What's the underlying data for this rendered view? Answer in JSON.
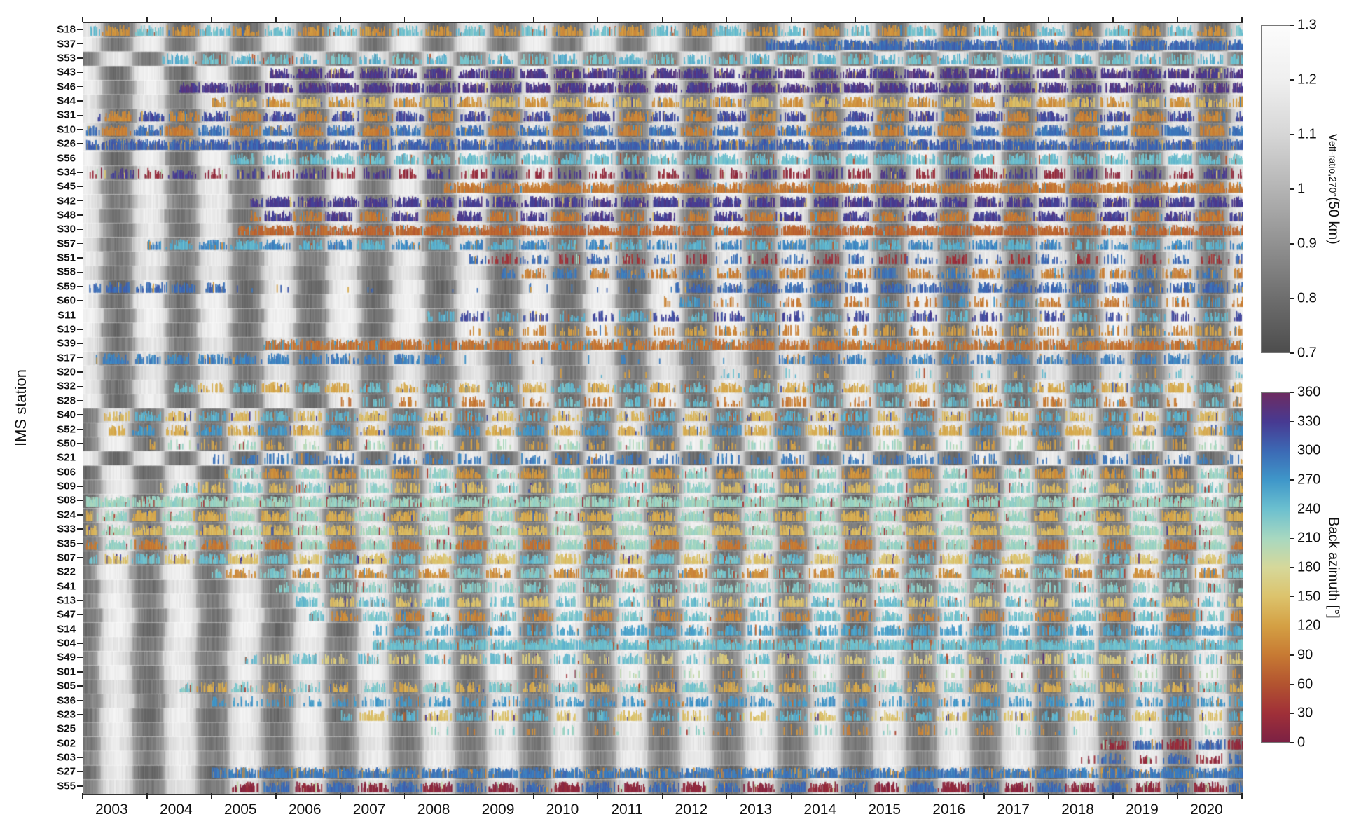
{
  "chart_data": {
    "type": "heatmap",
    "title": "",
    "ylabel": "IMS station",
    "x_range": [
      2003,
      2021
    ],
    "x_ticks": [
      "2003",
      "2004",
      "2005",
      "2006",
      "2007",
      "2008",
      "2009",
      "2010",
      "2011",
      "2012",
      "2013",
      "2014",
      "2015",
      "2016",
      "2017",
      "2018",
      "2019",
      "2020"
    ],
    "colorbars": [
      {
        "name": "veff-ratio",
        "label_parts": [
          "v",
          "eff-ratio,270°",
          " (50 km)"
        ],
        "ticks": [
          "1.3",
          "1.2",
          "1.1",
          "1",
          "0.9",
          "0.8",
          "0.7"
        ],
        "range": [
          0.7,
          1.3
        ],
        "type": "grayscale"
      },
      {
        "name": "back-azimuth",
        "label": "Back azimuth [°]",
        "ticks": [
          "360",
          "330",
          "300",
          "270",
          "240",
          "210",
          "180",
          "150",
          "120",
          "90",
          "60",
          "30",
          "0"
        ],
        "range": [
          0,
          360
        ],
        "type": "cyclic"
      }
    ],
    "grayscale_colormap": [
      [
        0.7,
        "#4d4d4d"
      ],
      [
        0.8,
        "#6e6e6e"
      ],
      [
        0.9,
        "#919191"
      ],
      [
        1.0,
        "#b4b4b4"
      ],
      [
        1.1,
        "#d6d6d6"
      ],
      [
        1.2,
        "#efefef"
      ],
      [
        1.3,
        "#fcfcfc"
      ]
    ],
    "azimuth_colormap": [
      [
        0,
        "#7c2144"
      ],
      [
        30,
        "#a03038"
      ],
      [
        60,
        "#b35430"
      ],
      [
        90,
        "#c77a33"
      ],
      [
        120,
        "#d4a044"
      ],
      [
        150,
        "#dcc36c"
      ],
      [
        180,
        "#d6d89a"
      ],
      [
        210,
        "#a8d8c0"
      ],
      [
        240,
        "#6cc0cf"
      ],
      [
        270,
        "#3f97c9"
      ],
      [
        300,
        "#3c6ab5"
      ],
      [
        330,
        "#473a92"
      ],
      [
        360,
        "#6d2b61"
      ]
    ],
    "stations": [
      {
        "label": "S18",
        "start": 2003.1,
        "phase": 0.04,
        "az_winter": 240,
        "az_summer": 110,
        "density": 0.55,
        "mode": "seasonal"
      },
      {
        "label": "S37",
        "start": 2013.6,
        "phase": 0.0,
        "az_winter": 300,
        "az_summer": 300,
        "density": 0.85,
        "mode": "mono"
      },
      {
        "label": "S53",
        "start": 2004.2,
        "phase": 0.5,
        "az_winter": 250,
        "az_summer": 235,
        "density": 0.5,
        "mode": "seasonal"
      },
      {
        "label": "S43",
        "start": 2005.9,
        "phase": 0.0,
        "az_winter": 335,
        "az_summer": 335,
        "density": 0.9,
        "mode": "seasonal"
      },
      {
        "label": "S46",
        "start": 2004.5,
        "phase": 0.05,
        "az_winter": 335,
        "az_summer": 335,
        "density": 0.9,
        "mode": "seasonal"
      },
      {
        "label": "S44",
        "start": 2005.0,
        "phase": 0.0,
        "az_winter": 110,
        "az_summer": 140,
        "density": 0.6,
        "mode": "seasonal"
      },
      {
        "label": "S31",
        "start": 2003.2,
        "phase": 0.05,
        "az_winter": 320,
        "az_summer": 100,
        "density": 0.7,
        "mode": "seasonal"
      },
      {
        "label": "S10",
        "start": 2003.05,
        "phase": 0.0,
        "az_winter": 295,
        "az_summer": 95,
        "density": 0.85,
        "mode": "seasonal"
      },
      {
        "label": "S26",
        "start": 2003.05,
        "phase": 0.04,
        "az_winter": 305,
        "az_summer": 305,
        "density": 0.9,
        "mode": "mono",
        "outlier": 0.1
      },
      {
        "label": "S56",
        "start": 2005.3,
        "phase": 0.0,
        "az_winter": 240,
        "az_summer": 240,
        "density": 0.6,
        "mode": "seasonal"
      },
      {
        "label": "S34",
        "start": 2003.1,
        "phase": 0.06,
        "az_winter": 20,
        "az_summer": 330,
        "density": 0.35,
        "mode": "seasonal"
      },
      {
        "label": "S45",
        "start": 2008.6,
        "phase": 0.0,
        "az_winter": 90,
        "az_summer": 70,
        "density": 0.8,
        "mode": "mono"
      },
      {
        "label": "S42",
        "start": 2005.6,
        "phase": 0.04,
        "az_winter": 330,
        "az_summer": 330,
        "density": 0.85,
        "mode": "seasonal"
      },
      {
        "label": "S48",
        "start": 2005.6,
        "phase": 0.0,
        "az_winter": 330,
        "az_summer": 90,
        "density": 0.75,
        "mode": "seasonal"
      },
      {
        "label": "S30",
        "start": 2005.4,
        "phase": 0.05,
        "az_winter": 75,
        "az_summer": 100,
        "density": 0.8,
        "mode": "mono"
      },
      {
        "label": "S57",
        "start": 2004.0,
        "phase": 0.0,
        "az_winter": 280,
        "az_summer": 250,
        "density": 0.55,
        "mode": "seasonal"
      },
      {
        "label": "S51",
        "start": 2009.0,
        "phase": 0.04,
        "az_winter": 300,
        "az_summer": 30,
        "density": 0.25,
        "mode": "seasonal"
      },
      {
        "label": "S58",
        "start": 2009.5,
        "phase": 0.0,
        "az_winter": 95,
        "az_summer": 290,
        "density": 0.5,
        "mode": "seasonal"
      },
      {
        "label": "S59",
        "start": 2003.1,
        "phase": 0.05,
        "az_winter": 300,
        "az_summer": 300,
        "density": 0.55,
        "mode": "seasonal",
        "gap": [
          2005.2,
          2012.2
        ]
      },
      {
        "label": "S60",
        "start": 2012.0,
        "phase": 0.0,
        "az_winter": 90,
        "az_summer": 270,
        "density": 0.3,
        "mode": "seasonal"
      },
      {
        "label": "S11",
        "start": 2008.3,
        "phase": 0.05,
        "az_winter": 320,
        "az_summer": 250,
        "density": 0.35,
        "mode": "seasonal"
      },
      {
        "label": "S19",
        "start": 2009.0,
        "phase": 0.0,
        "az_winter": 100,
        "az_summer": 120,
        "density": 0.3,
        "mode": "seasonal"
      },
      {
        "label": "S39",
        "start": 2005.8,
        "phase": 0.04,
        "az_winter": 85,
        "az_summer": 60,
        "density": 0.7,
        "mode": "mono",
        "outlier": 0.12
      },
      {
        "label": "S17",
        "start": 2003.2,
        "phase": 0.0,
        "az_winter": 285,
        "az_summer": 285,
        "density": 0.5,
        "mode": "seasonal",
        "gap": [
          2008.6,
          2013.8
        ]
      },
      {
        "label": "S20",
        "start": 2010.0,
        "phase": 0.05,
        "az_winter": 240,
        "az_summer": 120,
        "density": 0.05,
        "mode": "seasonal"
      },
      {
        "label": "S32",
        "start": 2004.4,
        "phase": 0.0,
        "az_winter": 130,
        "az_summer": 240,
        "density": 0.55,
        "mode": "seasonal"
      },
      {
        "label": "S28",
        "start": 2007.0,
        "phase": 0.04,
        "az_winter": 90,
        "az_summer": 240,
        "density": 0.3,
        "mode": "seasonal"
      },
      {
        "label": "S40",
        "start": 2003.3,
        "phase": 0.5,
        "az_winter": 140,
        "az_summer": 250,
        "density": 0.5,
        "mode": "seasonal",
        "outlier": 0.1
      },
      {
        "label": "S52",
        "start": 2003.4,
        "phase": 0.46,
        "az_winter": 130,
        "az_summer": 270,
        "density": 0.6,
        "mode": "seasonal"
      },
      {
        "label": "S50",
        "start": 2004.0,
        "phase": 0.5,
        "az_winter": 210,
        "az_summer": 120,
        "density": 0.2,
        "mode": "seasonal"
      },
      {
        "label": "S21",
        "start": 2005.0,
        "phase": 0.0,
        "az_winter": 290,
        "az_summer": 290,
        "density": 0.25,
        "mode": "seasonal"
      },
      {
        "label": "S06",
        "start": 2005.2,
        "phase": 0.5,
        "az_winter": 220,
        "az_summer": 110,
        "density": 0.6,
        "mode": "seasonal"
      },
      {
        "label": "S09",
        "start": 2004.2,
        "phase": 0.54,
        "az_winter": 225,
        "az_summer": 140,
        "density": 0.45,
        "mode": "seasonal"
      },
      {
        "label": "S08",
        "start": 2003.05,
        "phase": 0.5,
        "az_winter": 215,
        "az_summer": 215,
        "density": 0.9,
        "mode": "mono",
        "outlier": 0.07
      },
      {
        "label": "S24",
        "start": 2003.05,
        "phase": 0.46,
        "az_winter": 215,
        "az_summer": 130,
        "density": 0.85,
        "mode": "seasonal"
      },
      {
        "label": "S33",
        "start": 2003.05,
        "phase": 0.5,
        "az_winter": 210,
        "az_summer": 140,
        "density": 0.8,
        "mode": "seasonal"
      },
      {
        "label": "S35",
        "start": 2003.05,
        "phase": 0.54,
        "az_winter": 215,
        "az_summer": 90,
        "density": 0.8,
        "mode": "seasonal"
      },
      {
        "label": "S07",
        "start": 2003.1,
        "phase": 0.5,
        "az_winter": 150,
        "az_summer": 240,
        "density": 0.7,
        "mode": "seasonal"
      },
      {
        "label": "S22",
        "start": 2005.0,
        "phase": 0.46,
        "az_winter": 105,
        "az_summer": 230,
        "density": 0.6,
        "mode": "seasonal"
      },
      {
        "label": "S41",
        "start": 2006.0,
        "phase": 0.5,
        "az_winter": 225,
        "az_summer": 225,
        "density": 0.4,
        "mode": "seasonal"
      },
      {
        "label": "S13",
        "start": 2006.2,
        "phase": 0.5,
        "az_winter": 240,
        "az_summer": 150,
        "density": 0.5,
        "mode": "seasonal"
      },
      {
        "label": "S47",
        "start": 2006.5,
        "phase": 0.54,
        "az_winter": 235,
        "az_summer": 100,
        "density": 0.55,
        "mode": "seasonal"
      },
      {
        "label": "S14",
        "start": 2007.5,
        "phase": 0.5,
        "az_winter": 260,
        "az_summer": 260,
        "density": 0.5,
        "mode": "seasonal"
      },
      {
        "label": "S04",
        "start": 2007.5,
        "phase": 0.5,
        "az_winter": 240,
        "az_summer": 240,
        "density": 0.8,
        "mode": "mono"
      },
      {
        "label": "S49",
        "start": 2005.5,
        "phase": 0.46,
        "az_winter": 240,
        "az_summer": 160,
        "density": 0.35,
        "mode": "seasonal"
      },
      {
        "label": "S01",
        "start": 2010.0,
        "phase": 0.5,
        "az_winter": 200,
        "az_summer": 100,
        "density": 0.08,
        "mode": "seasonal"
      },
      {
        "label": "S05",
        "start": 2004.5,
        "phase": 0.5,
        "az_winter": 230,
        "az_summer": 130,
        "density": 0.5,
        "mode": "seasonal"
      },
      {
        "label": "S36",
        "start": 2005.0,
        "phase": 0.54,
        "az_winter": 270,
        "az_summer": 270,
        "density": 0.35,
        "mode": "seasonal"
      },
      {
        "label": "S23",
        "start": 2007.0,
        "phase": 0.5,
        "az_winter": 150,
        "az_summer": 250,
        "density": 0.45,
        "mode": "seasonal"
      },
      {
        "label": "S25",
        "start": 2008.0,
        "phase": 0.5,
        "az_winter": 220,
        "az_summer": 100,
        "density": 0.1,
        "mode": "seasonal"
      },
      {
        "label": "S02",
        "start": 2018.8,
        "phase": 0.5,
        "az_winter": 300,
        "az_summer": 20,
        "density": 0.7,
        "mode": "seasonal"
      },
      {
        "label": "S03",
        "start": 2018.5,
        "phase": 0.5,
        "az_winter": 20,
        "az_summer": 300,
        "density": 0.4,
        "mode": "seasonal"
      },
      {
        "label": "S27",
        "start": 2005.0,
        "phase": 0.5,
        "az_winter": 290,
        "az_summer": 290,
        "density": 0.85,
        "mode": "mono",
        "outlier": 0.12
      },
      {
        "label": "S55",
        "start": 2005.3,
        "phase": 0.5,
        "az_winter": 15,
        "az_summer": 300,
        "density": 0.8,
        "mode": "seasonal"
      }
    ]
  }
}
